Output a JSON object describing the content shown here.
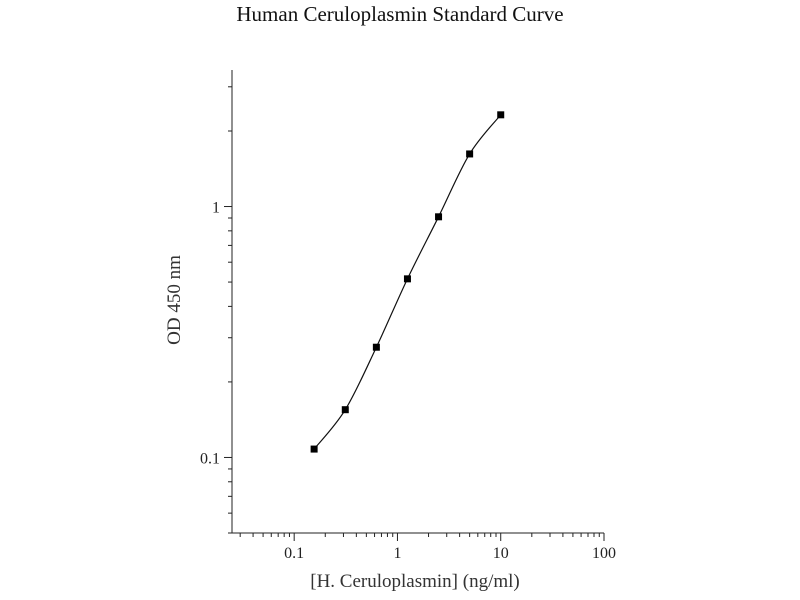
{
  "chart_data": {
    "type": "scatter",
    "title": "Human Ceruloplasmin Standard Curve",
    "xlabel": "[H. Ceruloplasmin] (ng/ml)",
    "ylabel": "OD 450 nm",
    "x_scale": "log",
    "y_scale": "log",
    "xlim": [
      0.025,
      100
    ],
    "ylim": [
      0.05,
      3.5
    ],
    "x_ticks": [
      "0.1",
      "1",
      "10",
      "100"
    ],
    "y_ticks": [
      "0.1",
      "1"
    ],
    "grid": false,
    "series": [
      {
        "x": [
          0.156,
          0.3125,
          0.625,
          1.25,
          2.5,
          5,
          10
        ],
        "y": [
          0.108,
          0.155,
          0.275,
          0.515,
          0.91,
          1.62,
          2.32
        ]
      }
    ]
  }
}
